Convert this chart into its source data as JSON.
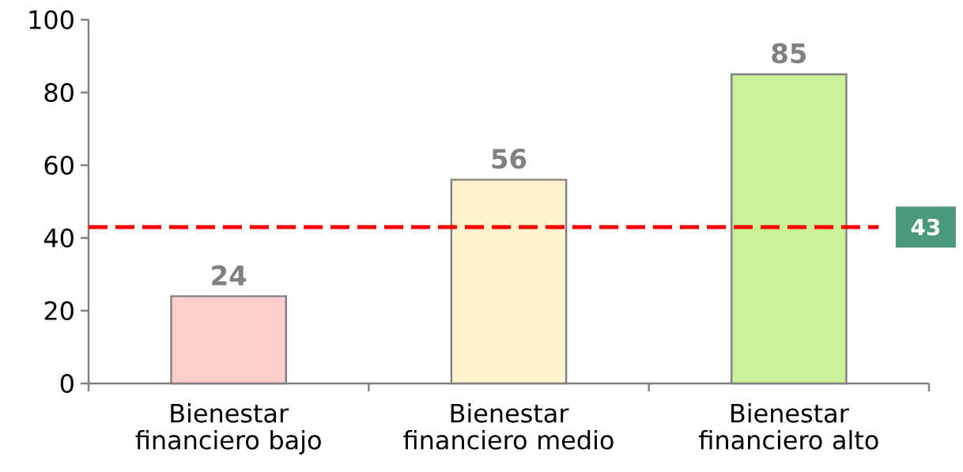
{
  "chart_data": {
    "type": "bar",
    "categories": [
      "Bienestar financiero bajo",
      "Bienestar financiero medio",
      "Bienestar financiero alto"
    ],
    "values": [
      24,
      56,
      85
    ],
    "colors": [
      "#ffcccc",
      "#fff2cc",
      "#ccf09a"
    ],
    "ylim": [
      0,
      100
    ],
    "yticks": [
      0,
      20,
      40,
      60,
      80,
      100
    ],
    "data_labels": true,
    "grid": false,
    "ref_lines": [
      {
        "axis": "y",
        "value": 43,
        "label": "43",
        "color": "#ff0000",
        "line_style": "dashed"
      }
    ]
  }
}
